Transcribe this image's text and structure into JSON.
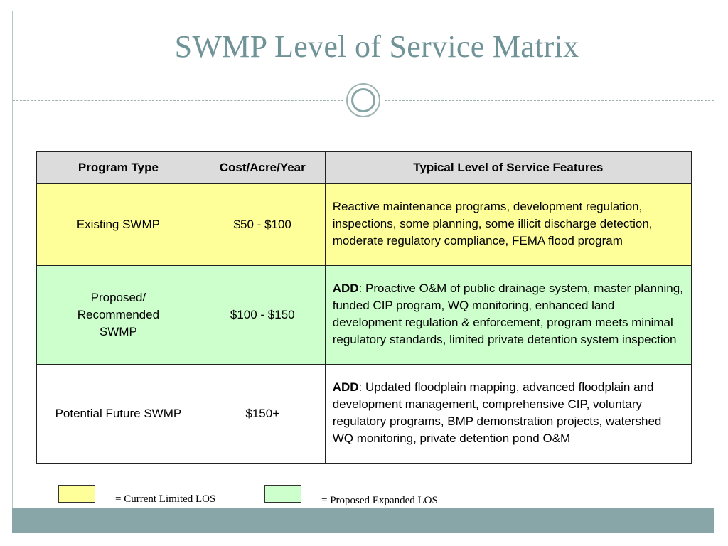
{
  "slide": {
    "title": "SWMP Level of Service Matrix"
  },
  "table": {
    "headers": [
      "Program Type",
      "Cost/Acre/Year",
      "Typical Level of Service Features"
    ],
    "rows": [
      {
        "program_type": "Existing SWMP",
        "cost": "$50 - $100",
        "features_prefix": "",
        "features": "Reactive maintenance programs, development regulation, inspections, some planning, some illicit discharge detection, moderate regulatory compliance, FEMA flood program",
        "color": "#ffff99"
      },
      {
        "program_type": "Proposed/ Recommended SWMP",
        "cost": "$100 - $150",
        "features_prefix": "ADD",
        "features": ":  Proactive O&M of public drainage system, master planning, funded CIP program, WQ monitoring, enhanced land development regulation & enforcement, program meets minimal regulatory standards, limited private detention system inspection",
        "color": "#ccffcc"
      },
      {
        "program_type": "Potential Future SWMP",
        "cost": "$150+",
        "features_prefix": "ADD",
        "features": ":  Updated floodplain mapping, advanced floodplain and development management, comprehensive CIP, voluntary regulatory programs, BMP demonstration projects, watershed WQ monitoring, private detention pond O&M",
        "color": "#ffffff"
      }
    ]
  },
  "legend": {
    "current": {
      "label": "= Current Limited LOS",
      "color": "#ffff99"
    },
    "proposed": {
      "label": "= Proposed Expanded LOS",
      "color": "#ccffcc"
    }
  },
  "colors": {
    "title": "#6f9397",
    "footer_bar": "#88a6a8",
    "header_fill": "#dcdcdc"
  }
}
